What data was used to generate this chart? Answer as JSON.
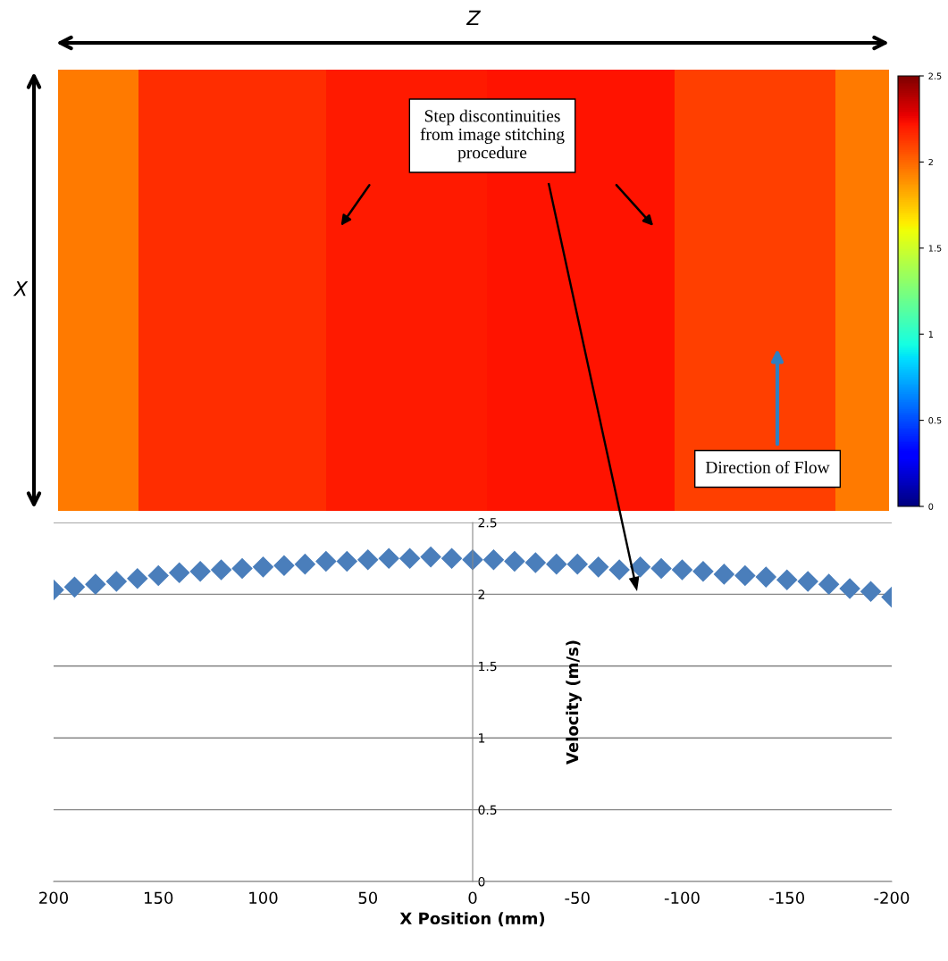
{
  "chart_data": [
    {
      "type": "heatmap",
      "xlabel": "Z",
      "ylabel": "X",
      "tick_labels": false,
      "categories": [
        null,
        null,
        null,
        null,
        null,
        null,
        null,
        null,
        null,
        null,
        null,
        null,
        null,
        null,
        null,
        null,
        null,
        null,
        null,
        null,
        null,
        null,
        null,
        null,
        null,
        null,
        null,
        null,
        null,
        null,
        null
      ],
      "y_categories": [
        null
      ],
      "cells": [
        [
          1.95,
          1.95,
          1.95,
          2.15,
          2.15,
          2.15,
          2.15,
          2.15,
          2.15,
          2.15,
          2.2,
          2.2,
          2.2,
          2.2,
          2.2,
          2.2,
          2.22,
          2.22,
          2.22,
          2.22,
          2.22,
          2.22,
          2.22,
          2.1,
          2.1,
          2.1,
          2.1,
          2.1,
          2.1,
          1.95,
          1.95
        ]
      ],
      "clim": [
        0,
        2.5
      ],
      "cticks": [
        0,
        0.5,
        1,
        1.5,
        2,
        2.5
      ],
      "annotations": [
        "Step discontinuities\nfrom image stitching\nprocedure",
        "Direction of Flow"
      ]
    },
    {
      "type": "scatter",
      "xlabel": "X Position (mm)",
      "ylabel": "Velocity (m/s)",
      "marker": "diamond",
      "grid": "y",
      "xlim": [
        200,
        -200
      ],
      "xticks": [
        200,
        150,
        100,
        50,
        0,
        -50,
        -100,
        -150,
        -200
      ],
      "ylim": [
        0,
        2.5
      ],
      "yticks": [
        0,
        0.5,
        1,
        1.5,
        2,
        2.5
      ],
      "x": [
        200,
        190,
        180,
        170,
        160,
        150,
        140,
        130,
        120,
        110,
        100,
        90,
        80,
        70,
        60,
        50,
        40,
        30,
        20,
        10,
        0,
        -10,
        -20,
        -30,
        -40,
        -50,
        -60,
        -70,
        -80,
        -90,
        -100,
        -110,
        -120,
        -130,
        -140,
        -150,
        -160,
        -170,
        -180,
        -190,
        -200
      ],
      "series": [
        {
          "color": "#4a7ebb",
          "values": [
            2.03,
            2.05,
            2.07,
            2.09,
            2.11,
            2.13,
            2.15,
            2.16,
            2.17,
            2.18,
            2.19,
            2.2,
            2.21,
            2.23,
            2.23,
            2.24,
            2.25,
            2.25,
            2.26,
            2.25,
            2.24,
            2.24,
            2.23,
            2.22,
            2.21,
            2.21,
            2.19,
            2.17,
            2.19,
            2.18,
            2.17,
            2.16,
            2.14,
            2.13,
            2.12,
            2.1,
            2.09,
            2.07,
            2.04,
            2.02,
            1.98
          ]
        }
      ]
    }
  ]
}
